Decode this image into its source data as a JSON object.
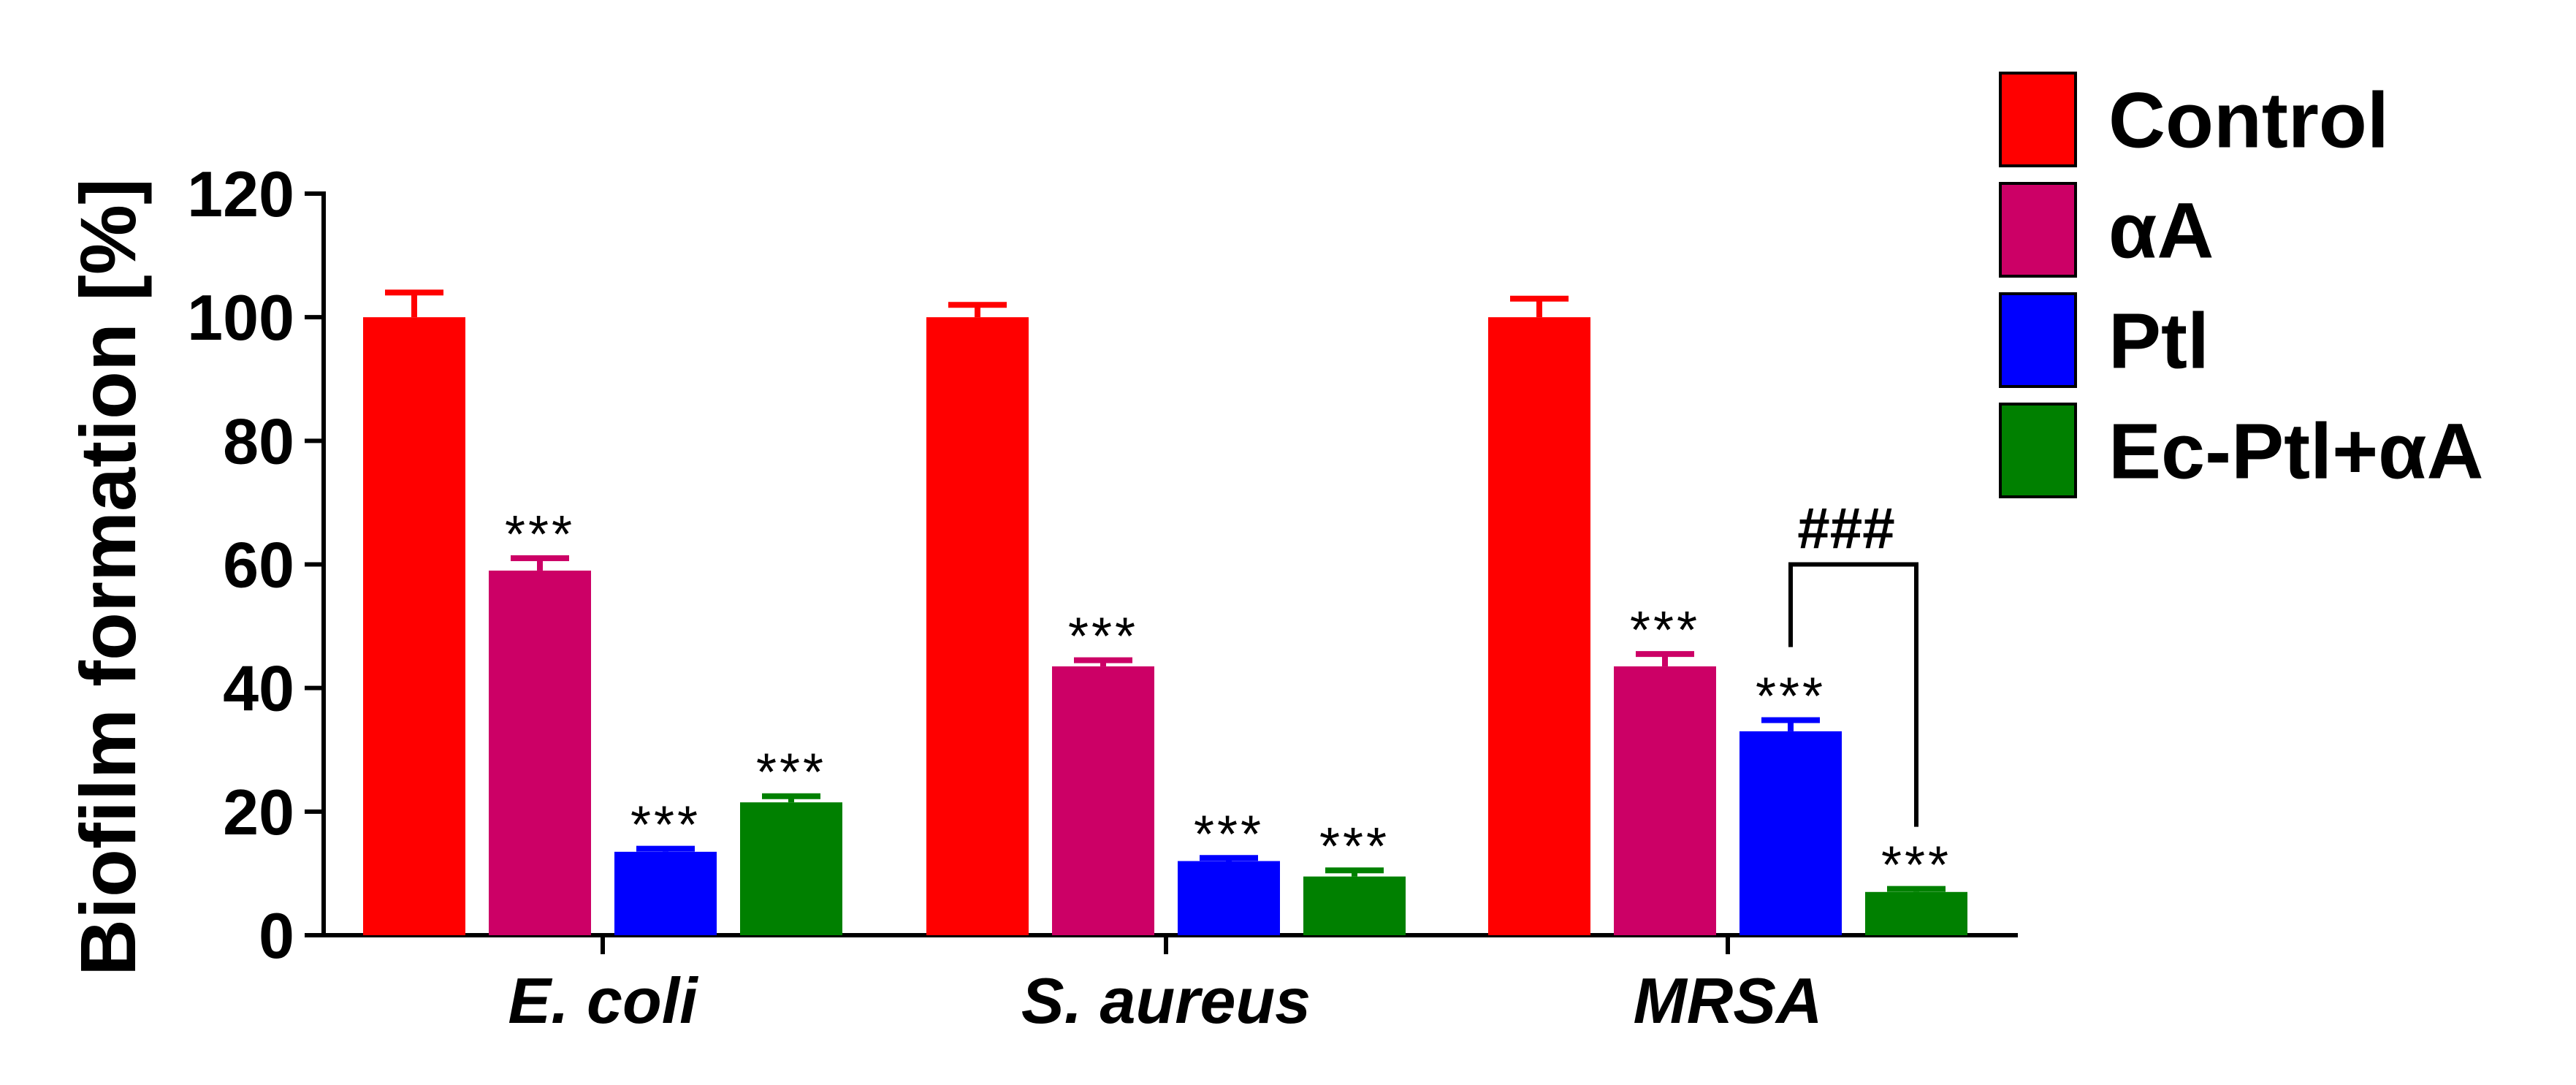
{
  "chart_data": {
    "type": "bar",
    "ylabel": "Biofilm formation [%]",
    "xlabel": "",
    "ylim": [
      0,
      120
    ],
    "yticks": [
      0,
      20,
      40,
      60,
      80,
      100,
      120
    ],
    "ytick_labels": [
      "0",
      "20",
      "40",
      "60",
      "80",
      "100",
      "120"
    ],
    "categories": [
      "E. coli",
      "S. aureus",
      "MRSA"
    ],
    "legend_position": "top-right",
    "grid": false,
    "series": [
      {
        "name": "Control",
        "color": "#ff0000",
        "values": [
          100,
          100,
          100
        ],
        "errors": [
          4,
          2,
          3
        ],
        "significance": [
          "",
          "",
          ""
        ]
      },
      {
        "name": "αA",
        "color": "#cc0066",
        "values": [
          59,
          43.5,
          43.5
        ],
        "errors": [
          2,
          1,
          2
        ],
        "significance": [
          "***",
          "***",
          "***"
        ]
      },
      {
        "name": "Ptl",
        "color": "#0000ff",
        "values": [
          13.5,
          12,
          33
        ],
        "errors": [
          0.5,
          0.5,
          1.8
        ],
        "significance": [
          "***",
          "***",
          "***"
        ]
      },
      {
        "name": "Ec-Ptl+αA",
        "color": "#008000",
        "values": [
          21.5,
          9.5,
          7
        ],
        "errors": [
          1,
          1,
          0.5
        ],
        "significance": [
          "***",
          "***",
          "***"
        ]
      }
    ],
    "comparison": {
      "category": "MRSA",
      "from_series": "Ptl",
      "to_series": "Ec-Ptl+αA",
      "label": "###",
      "bracket_top_value": 60
    }
  }
}
